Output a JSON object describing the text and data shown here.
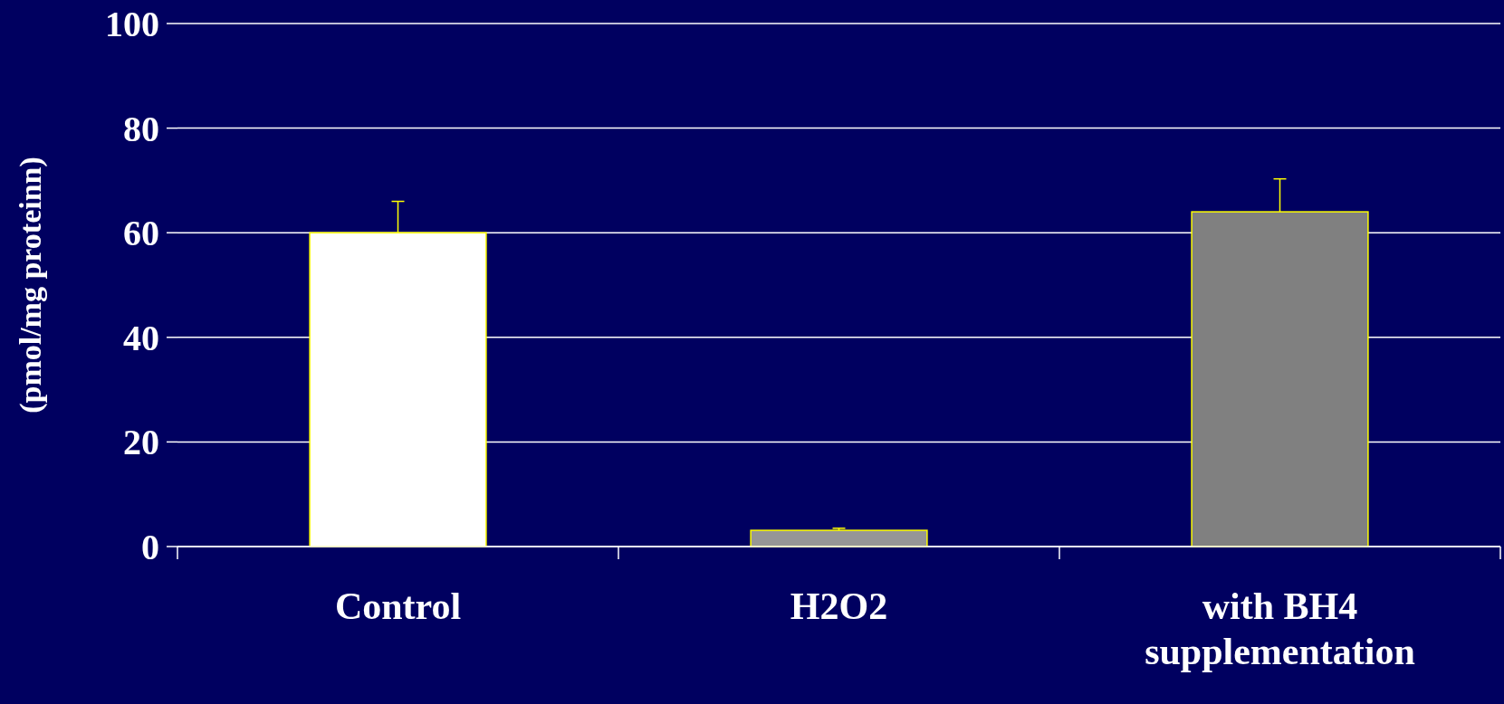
{
  "chart_data": {
    "type": "bar",
    "ylabel": "(pmol/mg proteinn)",
    "categories": [
      "Control",
      "H2O2",
      "with BH4 supplementation"
    ],
    "values": [
      60,
      3.1,
      64
    ],
    "colors": [
      "#ffffff",
      "#969696",
      "#808080"
    ],
    "errors": [
      [
        60,
        66
      ],
      [
        3.1,
        3.5
      ],
      [
        64,
        70.3
      ]
    ],
    "ylim": [
      0,
      100
    ],
    "yticks": [
      0,
      20,
      40,
      60,
      80,
      100
    ],
    "grid": "y"
  }
}
